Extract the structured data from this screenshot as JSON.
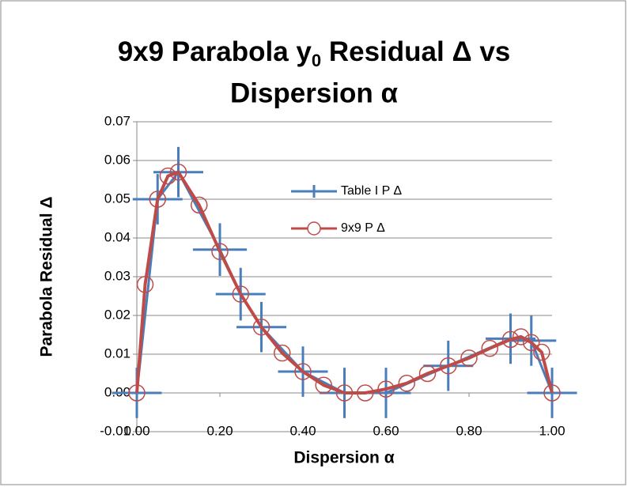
{
  "chart_data": {
    "type": "scatter",
    "title": [
      "9x9 Parabola y",
      "0",
      " Residual Δ vs",
      "Dispersion α"
    ],
    "xlabel": "Dispersion α",
    "ylabel": "Parabola Residual Δ",
    "xlim": [
      0,
      1
    ],
    "ylim": [
      -0.01,
      0.07
    ],
    "xticks": [
      {
        "value": 0,
        "label": "0.00"
      },
      {
        "value": 0.2,
        "label": "0.20"
      },
      {
        "value": 0.4,
        "label": "0.40"
      },
      {
        "value": 0.6,
        "label": "0.60"
      },
      {
        "value": 0.8,
        "label": "0.80"
      },
      {
        "value": 1,
        "label": "1.00"
      }
    ],
    "yticks": [
      -0.01,
      {
        "value": 0,
        "label": "0.00"
      },
      0.01,
      0.02,
      0.03,
      0.04,
      0.05,
      0.06,
      0.07
    ],
    "grid": true,
    "series": [
      {
        "name": "Table I P Δ",
        "color": "#4a7ebb",
        "marker": "cross",
        "x": [
          0,
          0.05,
          0.1,
          0.2,
          0.25,
          0.3,
          0.4,
          0.5,
          0.6,
          0.75,
          0.9,
          0.95,
          1
        ],
        "values": [
          0,
          0.05,
          0.057,
          0.037,
          0.0255,
          0.017,
          0.0055,
          0,
          0,
          0.007,
          0.014,
          0.0135,
          0
        ],
        "xerr": [
          0.06,
          0.06,
          0.06,
          0.065,
          0.06,
          0.06,
          0.06,
          0.06,
          0.06,
          0.06,
          0.06,
          0.06,
          0.06
        ],
        "yerr": [
          0.0065,
          0.0065,
          0.0065,
          0.0068,
          0.0068,
          0.0065,
          0.0065,
          0.0065,
          0.0065,
          0.0065,
          0.0065,
          0.0065,
          0.0065
        ]
      },
      {
        "name": "9x9 P Δ",
        "color": "#be4b48",
        "marker": "circle",
        "x": [
          0,
          0.02,
          0.05,
          0.075,
          0.1,
          0.15,
          0.2,
          0.25,
          0.3,
          0.35,
          0.4,
          0.45,
          0.5,
          0.55,
          0.6,
          0.65,
          0.7,
          0.75,
          0.8,
          0.85,
          0.9,
          0.925,
          0.95,
          0.975,
          1
        ],
        "values": [
          0,
          0.028,
          0.05,
          0.056,
          0.057,
          0.0485,
          0.0365,
          0.0255,
          0.017,
          0.0103,
          0.0055,
          0.002,
          0,
          0,
          0.001,
          0.0025,
          0.005,
          0.007,
          0.009,
          0.0115,
          0.0138,
          0.0145,
          0.013,
          0.0105,
          0
        ]
      }
    ]
  }
}
